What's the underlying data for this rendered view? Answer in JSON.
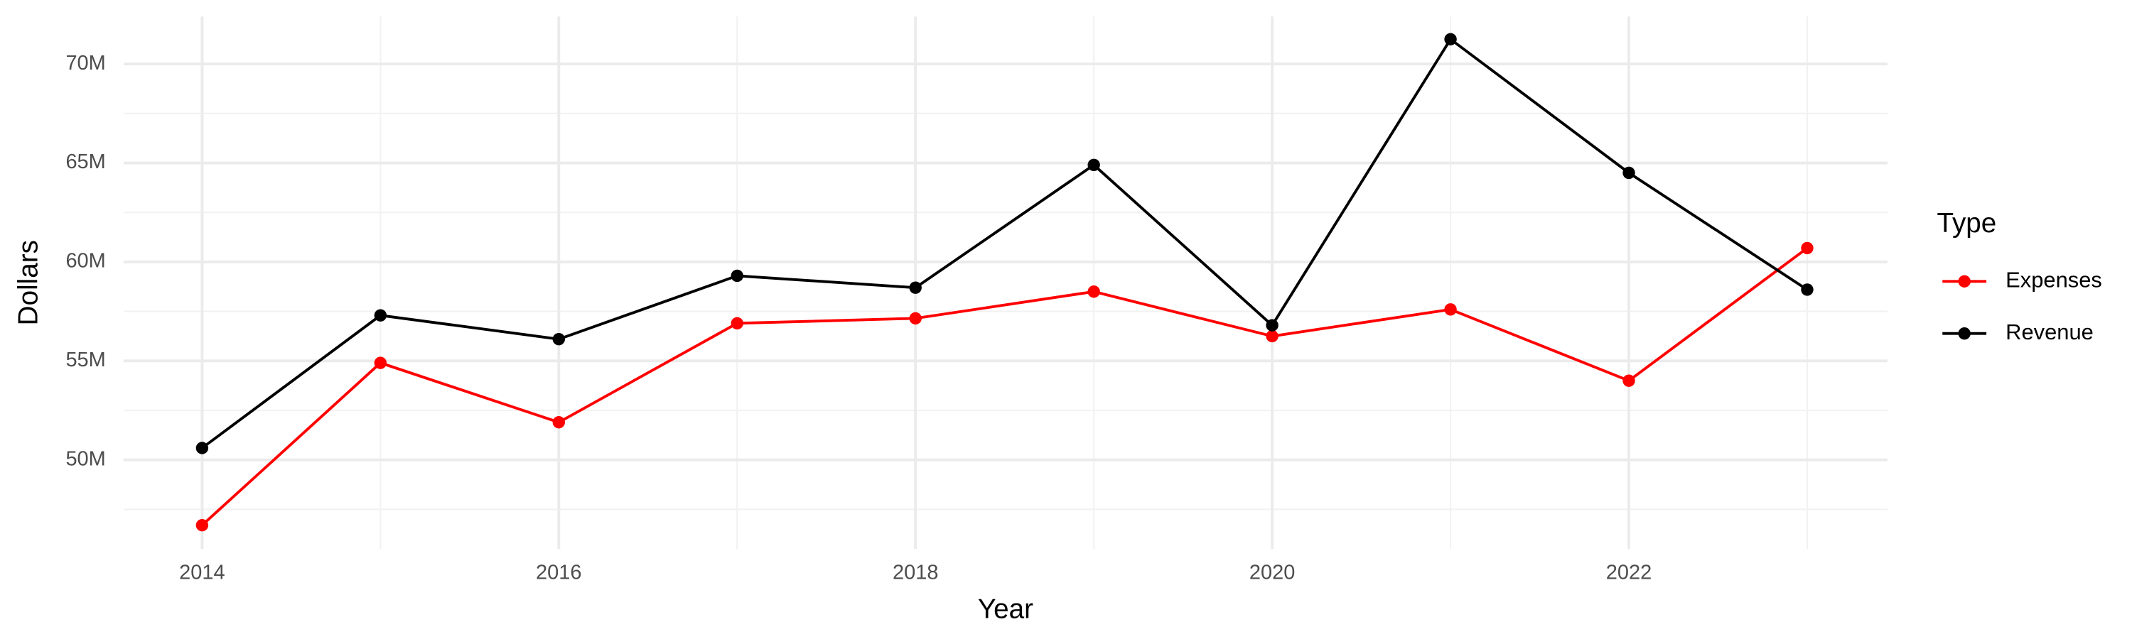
{
  "chart_data": {
    "type": "line",
    "x_label": "Year",
    "y_label": "Dollars",
    "legend_title": "Type",
    "legend_position": "right",
    "grid": true,
    "x": [
      2014,
      2015,
      2016,
      2017,
      2018,
      2019,
      2020,
      2021,
      2022,
      2023
    ],
    "xlim": [
      2013.56,
      2023.45
    ],
    "xticks": [
      2014,
      2016,
      2018,
      2020,
      2022
    ],
    "ylim": [
      45500000,
      72400000
    ],
    "yticks": [
      {
        "value": 50000000,
        "label": "50M"
      },
      {
        "value": 55000000,
        "label": "55M"
      },
      {
        "value": 60000000,
        "label": "60M"
      },
      {
        "value": 65000000,
        "label": "65M"
      },
      {
        "value": 70000000,
        "label": "70M"
      }
    ],
    "series": [
      {
        "name": "Expenses",
        "color": "#ff0000",
        "values": [
          46700000,
          54900000,
          51900000,
          56900000,
          57150000,
          58500000,
          56250000,
          57600000,
          54000000,
          60700000
        ]
      },
      {
        "name": "Revenue",
        "color": "#000000",
        "values": [
          50600000,
          57300000,
          56100000,
          59300000,
          58700000,
          64900000,
          56800000,
          71250000,
          64500000,
          58600000
        ]
      }
    ]
  }
}
